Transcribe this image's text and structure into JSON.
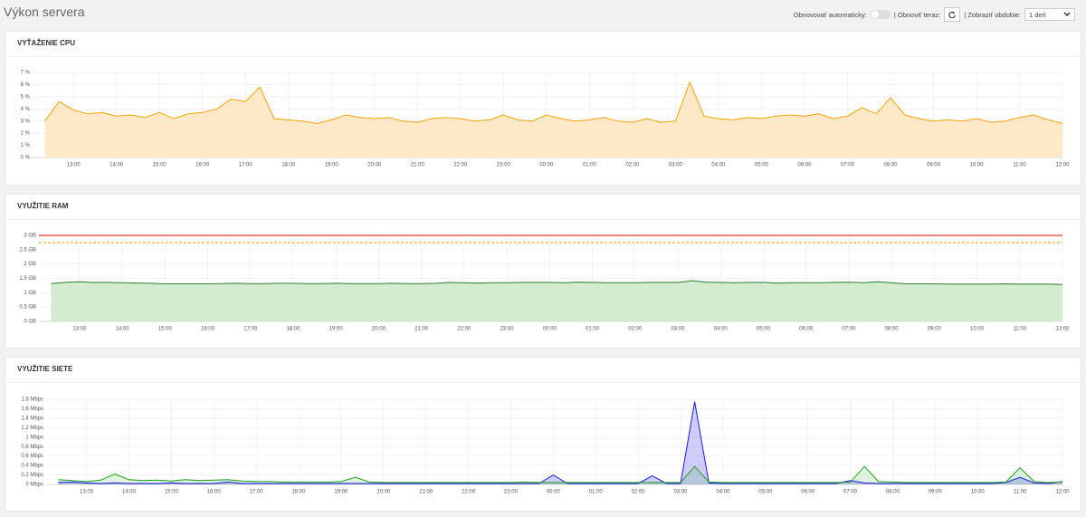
{
  "header": {
    "title": "Výkon servera",
    "auto_refresh_label": "Obnovovať automaticky:",
    "refresh_now_label": "| Obnoviť teraz:",
    "period_label": "| Zobraziť obdobie:",
    "period_value": "1 deň"
  },
  "chart_data": [
    {
      "type": "area",
      "title": "VYŤAŽENIE CPU",
      "x": [
        "12:20",
        "12:40",
        "13:00",
        "13:20",
        "13:40",
        "14:00",
        "14:20",
        "14:40",
        "15:00",
        "15:20",
        "15:40",
        "16:00",
        "16:20",
        "16:40",
        "17:00",
        "17:20",
        "17:40",
        "18:00",
        "18:20",
        "18:40",
        "19:00",
        "19:20",
        "19:40",
        "20:00",
        "20:20",
        "20:40",
        "21:00",
        "21:20",
        "21:40",
        "22:00",
        "22:20",
        "22:40",
        "23:00",
        "23:20",
        "23:40",
        "00:00",
        "00:20",
        "00:40",
        "01:00",
        "01:20",
        "01:40",
        "02:00",
        "02:20",
        "02:40",
        "03:00",
        "03:20",
        "03:40",
        "04:00",
        "04:20",
        "04:40",
        "05:00",
        "05:20",
        "05:40",
        "06:00",
        "06:20",
        "06:40",
        "07:00",
        "07:20",
        "07:40",
        "08:00",
        "08:20",
        "08:40",
        "09:00",
        "09:20",
        "09:40",
        "10:00",
        "10:20",
        "10:40",
        "11:00",
        "11:20",
        "11:40",
        "12:00"
      ],
      "xticks": [
        "13:00",
        "14:00",
        "15:00",
        "16:00",
        "17:00",
        "18:00",
        "19:00",
        "20:00",
        "21:00",
        "22:00",
        "23:00",
        "00:00",
        "01:00",
        "02:00",
        "03:00",
        "04:00",
        "05:00",
        "06:00",
        "07:00",
        "08:00",
        "09:00",
        "10:00",
        "11:00",
        "12:00"
      ],
      "series": [
        {
          "color": "#f0a30a",
          "fill_color": "#fde9c8",
          "values": [
            3.0,
            4.6,
            3.9,
            3.6,
            3.7,
            3.4,
            3.5,
            3.3,
            3.7,
            3.2,
            3.6,
            3.7,
            4.0,
            4.8,
            4.6,
            5.8,
            3.2,
            3.1,
            3.0,
            2.8,
            3.1,
            3.5,
            3.3,
            3.2,
            3.3,
            3.0,
            2.9,
            3.2,
            3.3,
            3.2,
            3.0,
            3.1,
            3.5,
            3.1,
            3.0,
            3.5,
            3.2,
            3.0,
            3.1,
            3.3,
            3.0,
            2.9,
            3.2,
            2.9,
            3.0,
            6.2,
            3.4,
            3.2,
            3.1,
            3.3,
            3.2,
            3.4,
            3.5,
            3.4,
            3.6,
            3.2,
            3.4,
            4.1,
            3.6,
            4.9,
            3.5,
            3.2,
            3.0,
            3.1,
            3.0,
            3.2,
            2.9,
            3.0,
            3.3,
            3.5,
            3.1,
            2.8
          ]
        }
      ],
      "ylim": [
        0,
        7
      ],
      "yticks": [
        {
          "value": 0,
          "label": "0 %"
        },
        {
          "value": 1,
          "label": "1 %"
        },
        {
          "value": 2,
          "label": "2 %"
        },
        {
          "value": 3,
          "label": "3 %"
        },
        {
          "value": 4,
          "label": "4 %"
        },
        {
          "value": 5,
          "label": "5 %"
        },
        {
          "value": 6,
          "label": "6 %"
        },
        {
          "value": 7,
          "label": "7 %"
        }
      ],
      "grid": true
    },
    {
      "type": "area",
      "title": "VYUŽITIE RAM",
      "x": [
        "12:20",
        "12:40",
        "13:00",
        "13:20",
        "13:40",
        "14:00",
        "14:20",
        "14:40",
        "15:00",
        "15:20",
        "15:40",
        "16:00",
        "16:20",
        "16:40",
        "17:00",
        "17:20",
        "17:40",
        "18:00",
        "18:20",
        "18:40",
        "19:00",
        "19:20",
        "19:40",
        "20:00",
        "20:20",
        "20:40",
        "21:00",
        "21:20",
        "21:40",
        "22:00",
        "22:20",
        "22:40",
        "23:00",
        "23:20",
        "23:40",
        "00:00",
        "00:20",
        "00:40",
        "01:00",
        "01:20",
        "01:40",
        "02:00",
        "02:20",
        "02:40",
        "03:00",
        "03:20",
        "03:40",
        "04:00",
        "04:20",
        "04:40",
        "05:00",
        "05:20",
        "05:40",
        "06:00",
        "06:20",
        "06:40",
        "07:00",
        "07:20",
        "07:40",
        "08:00",
        "08:20",
        "08:40",
        "09:00",
        "09:20",
        "09:40",
        "10:00",
        "10:20",
        "10:40",
        "11:00",
        "11:20",
        "11:40",
        "12:00"
      ],
      "xticks": [
        "13:00",
        "14:00",
        "15:00",
        "16:00",
        "17:00",
        "18:00",
        "19:00",
        "20:00",
        "21:00",
        "22:00",
        "23:00",
        "00:00",
        "01:00",
        "02:00",
        "03:00",
        "04:00",
        "05:00",
        "06:00",
        "07:00",
        "08:00",
        "09:00",
        "10:00",
        "11:00",
        "12:00"
      ],
      "series": [
        {
          "color": "#2e7d32",
          "fill_color": "#d3ebcf",
          "values": [
            1.32,
            1.36,
            1.38,
            1.36,
            1.36,
            1.35,
            1.34,
            1.33,
            1.31,
            1.31,
            1.31,
            1.31,
            1.32,
            1.33,
            1.32,
            1.32,
            1.33,
            1.33,
            1.32,
            1.32,
            1.33,
            1.32,
            1.32,
            1.32,
            1.33,
            1.32,
            1.32,
            1.33,
            1.36,
            1.35,
            1.34,
            1.35,
            1.35,
            1.36,
            1.36,
            1.36,
            1.35,
            1.37,
            1.36,
            1.35,
            1.35,
            1.35,
            1.36,
            1.36,
            1.36,
            1.42,
            1.37,
            1.36,
            1.35,
            1.36,
            1.36,
            1.34,
            1.35,
            1.35,
            1.35,
            1.36,
            1.37,
            1.35,
            1.38,
            1.35,
            1.31,
            1.31,
            1.31,
            1.3,
            1.3,
            1.3,
            1.3,
            1.31,
            1.3,
            1.3,
            1.3,
            1.29
          ]
        }
      ],
      "reference_lines": [
        {
          "value": 3,
          "color": "#e53935",
          "dashed": false
        },
        {
          "value": 2.75,
          "color": "#f5a623",
          "dashed": true
        }
      ],
      "ylim": [
        0,
        3
      ],
      "yticks": [
        {
          "value": 0,
          "label": "0 GB"
        },
        {
          "value": 0.5,
          "label": "0.5 GB"
        },
        {
          "value": 1,
          "label": "1 GB"
        },
        {
          "value": 1.5,
          "label": "1.5 GB"
        },
        {
          "value": 2,
          "label": "2 GB"
        },
        {
          "value": 2.5,
          "label": "2.5 GB"
        },
        {
          "value": 3,
          "label": "3 GB"
        }
      ],
      "grid": true
    },
    {
      "type": "area",
      "title": "VYUŽITIE SIETE",
      "x": [
        "12:20",
        "12:40",
        "13:00",
        "13:20",
        "13:40",
        "14:00",
        "14:20",
        "14:40",
        "15:00",
        "15:20",
        "15:40",
        "16:00",
        "16:20",
        "16:40",
        "17:00",
        "17:20",
        "17:40",
        "18:00",
        "18:20",
        "18:40",
        "19:00",
        "19:20",
        "19:40",
        "20:00",
        "20:20",
        "20:40",
        "21:00",
        "21:20",
        "21:40",
        "22:00",
        "22:20",
        "22:40",
        "23:00",
        "23:20",
        "23:40",
        "00:00",
        "00:20",
        "00:40",
        "01:00",
        "01:20",
        "01:40",
        "02:00",
        "02:20",
        "02:40",
        "03:00",
        "03:20",
        "03:40",
        "04:00",
        "04:20",
        "04:40",
        "05:00",
        "05:20",
        "05:40",
        "06:00",
        "06:20",
        "06:40",
        "07:00",
        "07:20",
        "07:40",
        "08:00",
        "08:20",
        "08:40",
        "09:00",
        "09:20",
        "09:40",
        "10:00",
        "10:20",
        "10:40",
        "11:00",
        "11:20",
        "11:40",
        "12:00"
      ],
      "xticks": [
        "13:00",
        "14:00",
        "15:00",
        "16:00",
        "17:00",
        "18:00",
        "19:00",
        "20:00",
        "21:00",
        "22:00",
        "23:00",
        "00:00",
        "01:00",
        "02:00",
        "03:00",
        "04:00",
        "05:00",
        "06:00",
        "07:00",
        "08:00",
        "09:00",
        "10:00",
        "11:00",
        "12:00"
      ],
      "series": [
        {
          "color": "#1a1ae0",
          "fill_color": "rgba(60,60,230,0.25)",
          "values": [
            0.04,
            0.05,
            0.03,
            0.02,
            0.03,
            0.02,
            0.02,
            0.02,
            0.03,
            0.02,
            0.02,
            0.02,
            0.05,
            0.02,
            0.02,
            0.02,
            0.02,
            0.02,
            0.02,
            0.02,
            0.02,
            0.02,
            0.02,
            0.02,
            0.02,
            0.02,
            0.02,
            0.02,
            0.02,
            0.02,
            0.02,
            0.02,
            0.02,
            0.02,
            0.02,
            0.2,
            0.02,
            0.02,
            0.02,
            0.02,
            0.02,
            0.02,
            0.18,
            0.02,
            0.02,
            1.75,
            0.03,
            0.02,
            0.02,
            0.02,
            0.02,
            0.02,
            0.02,
            0.02,
            0.02,
            0.02,
            0.08,
            0.03,
            0.02,
            0.02,
            0.02,
            0.02,
            0.02,
            0.02,
            0.02,
            0.02,
            0.02,
            0.04,
            0.15,
            0.03,
            0.02,
            0.06
          ]
        },
        {
          "color": "#1a9e1a",
          "fill_color": "rgba(40,170,40,0.15)",
          "values": [
            0.1,
            0.08,
            0.06,
            0.09,
            0.22,
            0.1,
            0.08,
            0.09,
            0.07,
            0.1,
            0.08,
            0.09,
            0.1,
            0.07,
            0.06,
            0.06,
            0.05,
            0.05,
            0.05,
            0.05,
            0.06,
            0.15,
            0.05,
            0.04,
            0.04,
            0.04,
            0.04,
            0.04,
            0.04,
            0.04,
            0.04,
            0.04,
            0.04,
            0.05,
            0.04,
            0.04,
            0.04,
            0.04,
            0.04,
            0.04,
            0.04,
            0.04,
            0.04,
            0.04,
            0.04,
            0.38,
            0.05,
            0.04,
            0.04,
            0.04,
            0.04,
            0.04,
            0.04,
            0.04,
            0.04,
            0.04,
            0.05,
            0.38,
            0.06,
            0.05,
            0.04,
            0.04,
            0.04,
            0.04,
            0.04,
            0.04,
            0.04,
            0.05,
            0.35,
            0.06,
            0.04,
            0.05
          ]
        }
      ],
      "ylim": [
        0,
        1.8
      ],
      "yticks": [
        {
          "value": 0,
          "label": "0 Mbps"
        },
        {
          "value": 0.2,
          "label": "0.2 Mbps"
        },
        {
          "value": 0.4,
          "label": "0.4 Mbps"
        },
        {
          "value": 0.6,
          "label": "0.6 Mbps"
        },
        {
          "value": 0.8,
          "label": "0.8 Mbps"
        },
        {
          "value": 1,
          "label": "1 Mbps"
        },
        {
          "value": 1.2,
          "label": "1.2 Mbps"
        },
        {
          "value": 1.4,
          "label": "1.4 Mbps"
        },
        {
          "value": 1.6,
          "label": "1.6 Mbps"
        },
        {
          "value": 1.8,
          "label": "1.8 Mbps"
        }
      ],
      "grid": true
    }
  ]
}
